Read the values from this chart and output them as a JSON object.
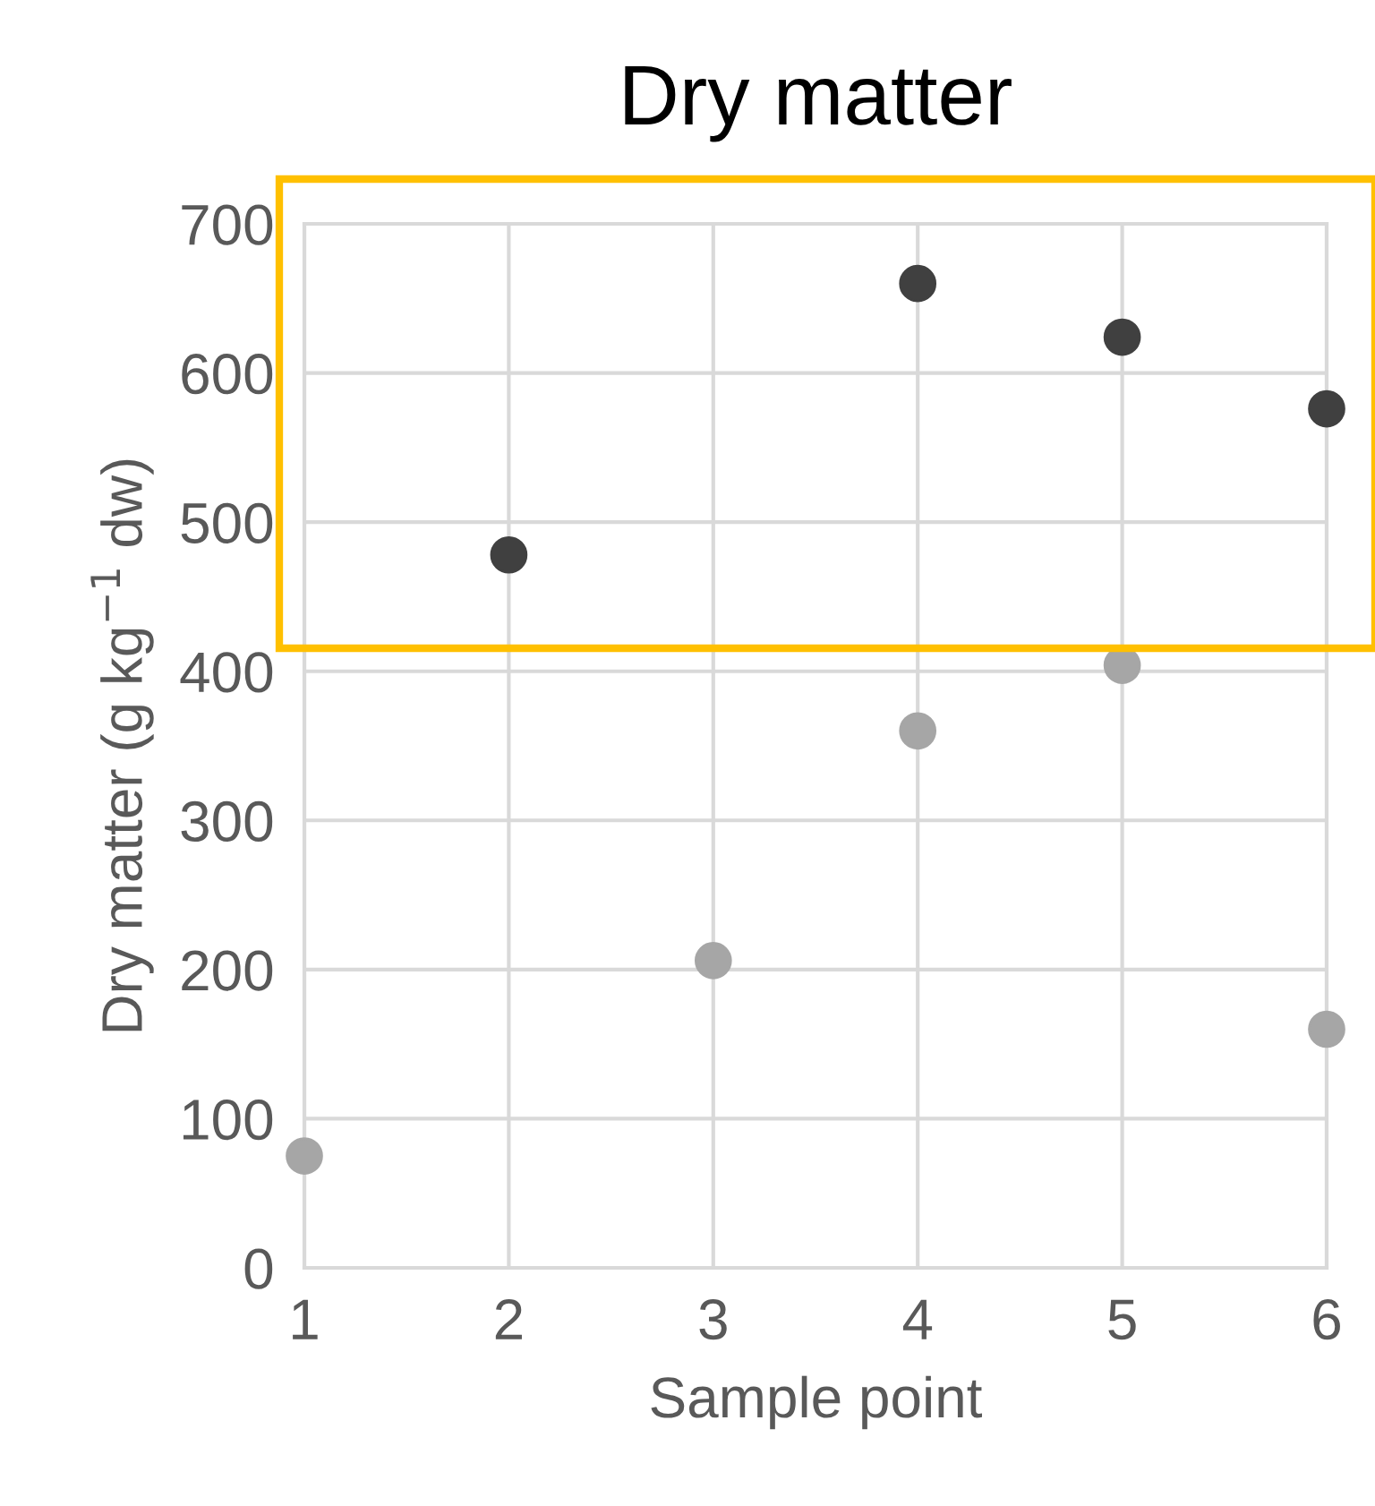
{
  "chart_data": {
    "type": "scatter",
    "title": "Dry matter",
    "xlabel": "Sample point",
    "ylabel": "Dry matter (g kg$^{−1}$ dw)",
    "xlim": [
      1,
      6
    ],
    "xticks": [
      1,
      2,
      3,
      4,
      5,
      6
    ],
    "ylim": [
      0,
      700
    ],
    "yticks": [
      0,
      100,
      200,
      300,
      400,
      500,
      600,
      700
    ],
    "grid": true,
    "marker": "circle",
    "series": [
      {
        "color": "#404040",
        "x": [
          2,
          4,
          5,
          6
        ],
        "values": [
          478,
          660,
          624,
          576
        ]
      },
      {
        "color": "#a6a6a6",
        "x": [
          1,
          3,
          4,
          5,
          6
        ],
        "values": [
          75,
          206,
          360,
          404,
          160
        ]
      }
    ]
  }
}
